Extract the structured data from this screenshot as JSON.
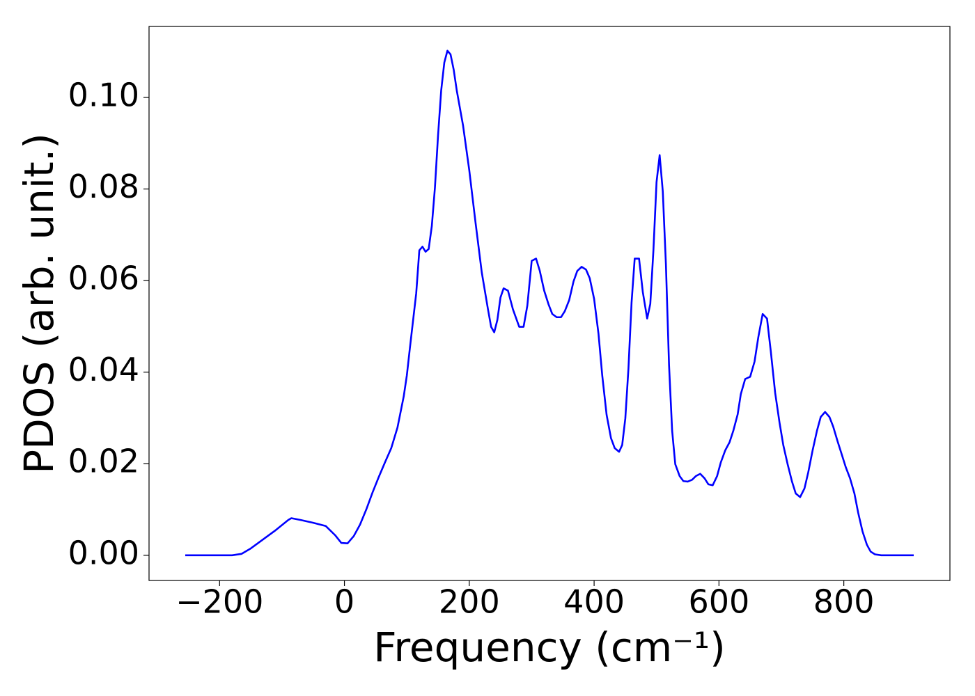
{
  "chart_data": {
    "type": "line",
    "xlabel": "Frequency (cm⁻¹)",
    "ylabel": "PDOS (arb. unit.)",
    "xlim": [
      -313,
      970
    ],
    "ylim": [
      -0.0055,
      0.1155
    ],
    "xticks": [
      {
        "value": -200,
        "label": "−200"
      },
      0,
      200,
      400,
      600,
      800
    ],
    "yticks": [
      {
        "value": 0,
        "label": "0.00"
      },
      {
        "value": 0.02,
        "label": "0.02"
      },
      {
        "value": 0.04,
        "label": "0.04"
      },
      {
        "value": 0.06,
        "label": "0.06"
      },
      {
        "value": 0.08,
        "label": "0.08"
      },
      {
        "value": 0.1,
        "label": "0.10"
      }
    ],
    "grid": false,
    "series": [
      {
        "color": "#0000ff",
        "x": [
          -255,
          -180,
          -165,
          -150,
          -130,
          -110,
          -90,
          -85,
          -70,
          -50,
          -30,
          -15,
          -5,
          5,
          15,
          25,
          35,
          45,
          55,
          65,
          75,
          85,
          95,
          100,
          105,
          115,
          120,
          125,
          130,
          135,
          140,
          145,
          150,
          155,
          160,
          165,
          170,
          175,
          180,
          190,
          200,
          210,
          220,
          230,
          235,
          240,
          245,
          250,
          255,
          262,
          270,
          280,
          287,
          293,
          300,
          307,
          313,
          320,
          327,
          333,
          340,
          347,
          353,
          360,
          367,
          373,
          380,
          387,
          393,
          400,
          407,
          413,
          420,
          427,
          433,
          440,
          445,
          450,
          455,
          460,
          465,
          472,
          478,
          485,
          490,
          495,
          500,
          505,
          510,
          515,
          520,
          525,
          530,
          537,
          543,
          550,
          557,
          563,
          570,
          577,
          583,
          590,
          597,
          603,
          610,
          617,
          623,
          630,
          635,
          642,
          650,
          657,
          663,
          670,
          677,
          683,
          690,
          697,
          703,
          710,
          717,
          723,
          730,
          737,
          743,
          750,
          757,
          763,
          770,
          777,
          783,
          790,
          797,
          803,
          810,
          817,
          823,
          830,
          837,
          843,
          850,
          860,
          912
        ],
        "values": [
          0,
          0,
          0.0003,
          0.0015,
          0.0035,
          0.0055,
          0.0077,
          0.0081,
          0.0077,
          0.0071,
          0.0064,
          0.0044,
          0.0027,
          0.0026,
          0.0042,
          0.0067,
          0.01,
          0.0137,
          0.0171,
          0.0203,
          0.0234,
          0.0279,
          0.0347,
          0.0393,
          0.0454,
          0.0572,
          0.0666,
          0.0674,
          0.0663,
          0.0669,
          0.0719,
          0.0803,
          0.0917,
          0.1015,
          0.1076,
          0.1102,
          0.1094,
          0.1061,
          0.1015,
          0.0939,
          0.0841,
          0.0727,
          0.0618,
          0.0537,
          0.0499,
          0.0487,
          0.0514,
          0.0563,
          0.0583,
          0.0578,
          0.0537,
          0.0499,
          0.0499,
          0.0545,
          0.0643,
          0.0648,
          0.0621,
          0.0578,
          0.0548,
          0.0527,
          0.052,
          0.052,
          0.0533,
          0.0557,
          0.0598,
          0.0621,
          0.063,
          0.0624,
          0.0605,
          0.056,
          0.0484,
          0.0393,
          0.0307,
          0.0256,
          0.0234,
          0.0226,
          0.0241,
          0.0299,
          0.0408,
          0.0552,
          0.0648,
          0.0648,
          0.0575,
          0.0517,
          0.0549,
          0.0666,
          0.0815,
          0.0874,
          0.0795,
          0.0636,
          0.0416,
          0.0272,
          0.0199,
          0.0173,
          0.0162,
          0.0161,
          0.0165,
          0.0173,
          0.0178,
          0.0168,
          0.0155,
          0.0153,
          0.0173,
          0.0203,
          0.0229,
          0.0247,
          0.0272,
          0.0308,
          0.0352,
          0.0385,
          0.039,
          0.0423,
          0.0476,
          0.0527,
          0.0517,
          0.0446,
          0.0355,
          0.029,
          0.0241,
          0.0199,
          0.0161,
          0.0135,
          0.0127,
          0.0146,
          0.0181,
          0.0229,
          0.0272,
          0.0302,
          0.0313,
          0.0302,
          0.0281,
          0.0249,
          0.0219,
          0.0193,
          0.0168,
          0.0135,
          0.0093,
          0.0052,
          0.0023,
          0.0008,
          0.0002,
          0,
          0
        ]
      }
    ]
  }
}
